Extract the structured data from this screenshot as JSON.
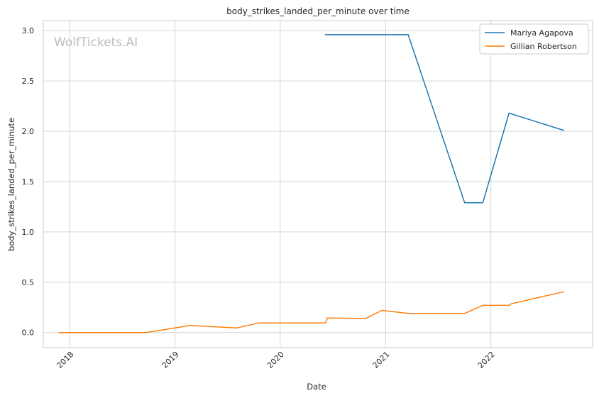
{
  "chart_data": {
    "type": "line",
    "title": "body_strikes_landed_per_minute over time",
    "xlabel": "Date",
    "ylabel": "body_strikes_landed_per_minute",
    "watermark": "WolfTickets.AI",
    "x_range": [
      "2017-10-01",
      "2022-12-20"
    ],
    "ylim": [
      -0.15,
      3.1
    ],
    "y_ticks": [
      "0.0",
      "0.5",
      "1.0",
      "1.5",
      "2.0",
      "2.5",
      "3.0"
    ],
    "x_ticks": [
      "2018",
      "2019",
      "2020",
      "2021",
      "2022"
    ],
    "grid": true,
    "legend_position": "top-right",
    "series": [
      {
        "name": "Mariya Agapova",
        "color": "#1f77b4",
        "points": [
          [
            "2020-06-06",
            2.96
          ],
          [
            "2021-03-20",
            2.96
          ],
          [
            "2021-10-02",
            1.29
          ],
          [
            "2021-12-04",
            1.29
          ],
          [
            "2022-03-05",
            2.18
          ],
          [
            "2022-09-10",
            2.01
          ]
        ]
      },
      {
        "name": "Gillian Robertson",
        "color": "#ff7f0e",
        "points": [
          [
            "2017-11-25",
            0.0
          ],
          [
            "2018-09-22",
            0.0
          ],
          [
            "2019-02-23",
            0.07
          ],
          [
            "2019-08-03",
            0.045
          ],
          [
            "2019-10-18",
            0.095
          ],
          [
            "2020-06-06",
            0.095
          ],
          [
            "2020-06-13",
            0.145
          ],
          [
            "2020-10-24",
            0.14
          ],
          [
            "2020-12-19",
            0.22
          ],
          [
            "2021-03-20",
            0.19
          ],
          [
            "2021-10-02",
            0.19
          ],
          [
            "2021-12-04",
            0.27
          ],
          [
            "2022-03-05",
            0.27
          ],
          [
            "2022-03-12",
            0.285
          ],
          [
            "2022-09-10",
            0.405
          ]
        ]
      }
    ]
  }
}
